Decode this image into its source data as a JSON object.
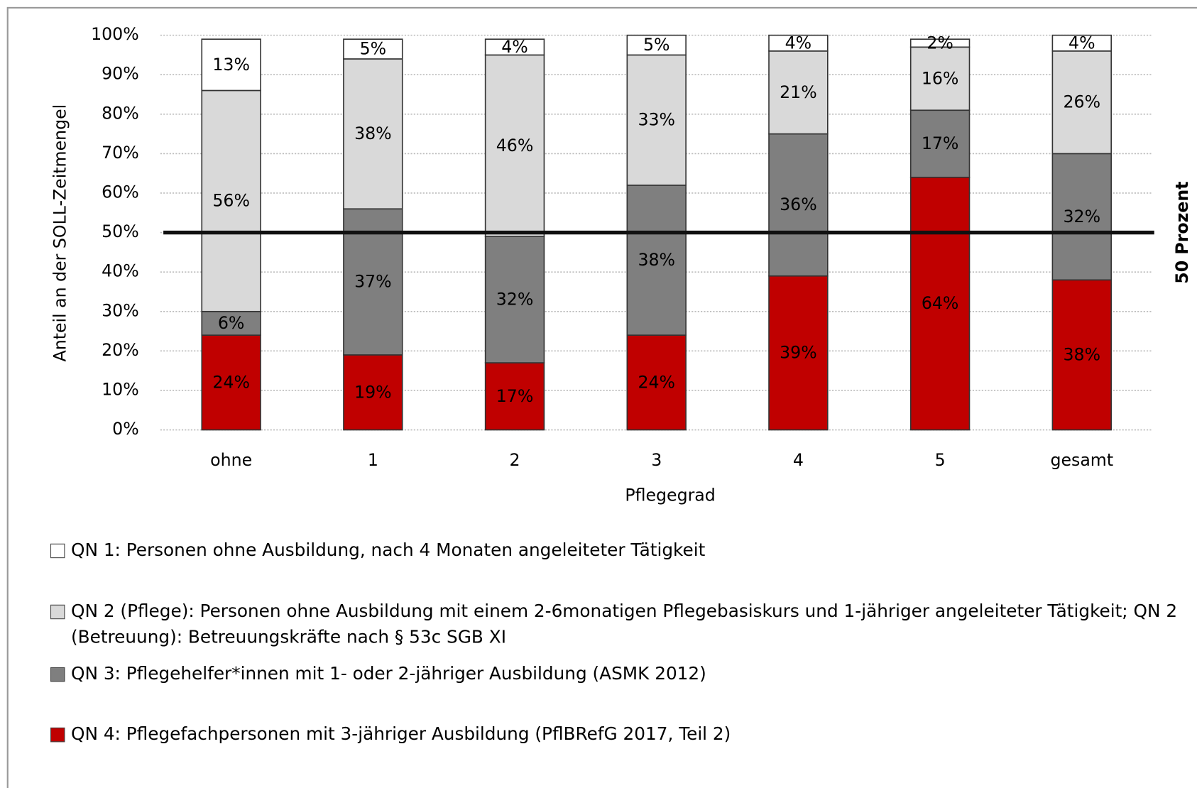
{
  "chart_data": {
    "type": "stacked_bar",
    "x_label": "Pflegegrad",
    "y_label": "Anteil an der SOLL-Zeitmengel",
    "categories": [
      "ohne",
      "1",
      "2",
      "3",
      "4",
      "5",
      "gesamt"
    ],
    "series": [
      {
        "name": "QN 1: Personen ohne Ausbildung, nach 4 Monaten angeleiteter Tätigkeit",
        "color": "#ffffff",
        "values": [
          13,
          5,
          4,
          5,
          4,
          2,
          4
        ],
        "value_labels": [
          "13%",
          "5%",
          "4%",
          "5%",
          "4%",
          "2%",
          "4%"
        ]
      },
      {
        "name": "QN 2 (Pflege): Personen ohne Ausbildung mit einem 2-6monatigen Pflegebasiskurs und 1-jähriger angeleiteter Tätigkeit; QN 2 (Betreuung): Betreuungskräfte nach § 53c SGB XI",
        "color": "#d9d9d9",
        "values": [
          56,
          38,
          46,
          33,
          21,
          16,
          26
        ],
        "value_labels": [
          "56%",
          "38%",
          "46%",
          "33%",
          "21%",
          "16%",
          "26%"
        ]
      },
      {
        "name": "QN 3: Pflegehelfer*innen mit 1- oder 2-jähriger Ausbildung (ASMK 2012)",
        "color": "#7f7f7f",
        "values": [
          6,
          37,
          32,
          38,
          36,
          17,
          32
        ],
        "value_labels": [
          "6%",
          "37%",
          "32%",
          "38%",
          "36%",
          "17%",
          "32%"
        ]
      },
      {
        "name": "QN 4: Pflegefachpersonen mit 3-jähriger Ausbildung (PflBRefG 2017, Teil 2)",
        "color": "#c00000",
        "values": [
          24,
          19,
          17,
          24,
          39,
          64,
          38
        ],
        "value_labels": [
          "24%",
          "19%",
          "17%",
          "24%",
          "39%",
          "64%",
          "38%"
        ]
      }
    ],
    "ylim": [
      0,
      100
    ],
    "yticks": [
      {
        "value": 0,
        "label": "0%"
      },
      {
        "value": 10,
        "label": "10%"
      },
      {
        "value": 20,
        "label": "20%"
      },
      {
        "value": 30,
        "label": "30%"
      },
      {
        "value": 40,
        "label": "40%"
      },
      {
        "value": 50,
        "label": "50%"
      },
      {
        "value": 60,
        "label": "60%"
      },
      {
        "value": 70,
        "label": "70%"
      },
      {
        "value": 80,
        "label": "80%"
      },
      {
        "value": 90,
        "label": "90%"
      },
      {
        "value": 100,
        "label": "100%"
      }
    ],
    "grid": true,
    "reference_line": {
      "value": 50,
      "label": "50 Prozent"
    }
  }
}
